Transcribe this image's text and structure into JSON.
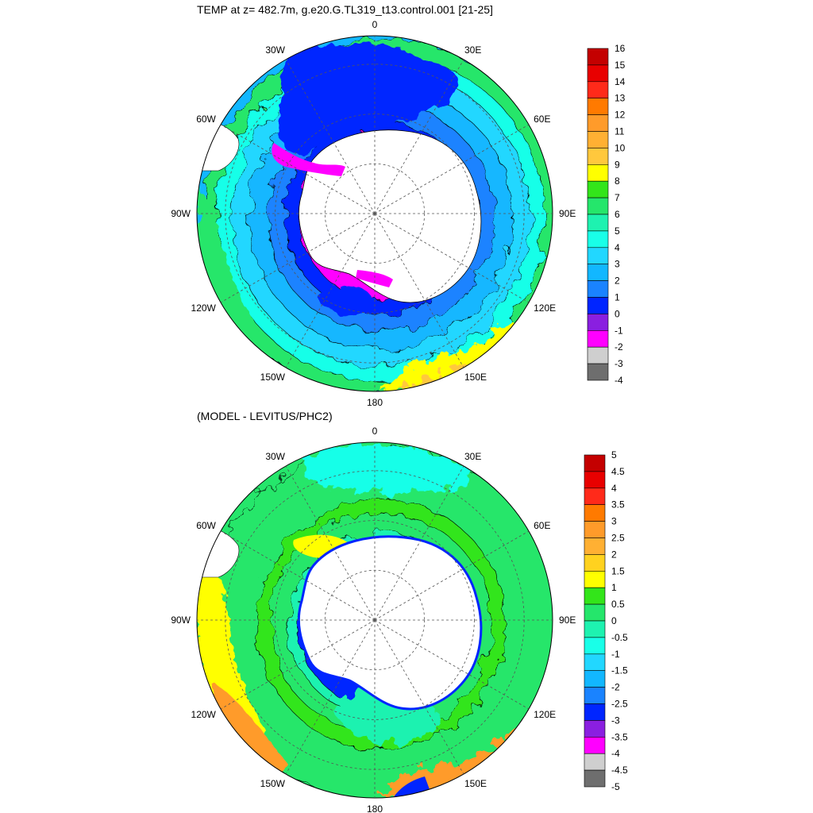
{
  "colors": {
    "land": "#ffffff",
    "coast": "#000000",
    "grid": "#555555"
  },
  "panels": [
    {
      "name": "temperature",
      "title": "TEMP at z= 482.7m, g.e20.G.TL319_t13.control.001 [21-25]",
      "lon_labels": [
        "0",
        "30E",
        "60E",
        "90E",
        "120E",
        "150E",
        "180",
        "150W",
        "120W",
        "90W",
        "60W",
        "30W"
      ],
      "colorbar": {
        "levels": [
          "16",
          "15",
          "14",
          "13",
          "12",
          "11",
          "10",
          "9",
          "8",
          "7",
          "6",
          "5",
          "4",
          "3",
          "2",
          "1",
          "0",
          "-1",
          "-2",
          "-3",
          "-4"
        ],
        "colors": [
          "#c40000",
          "#e80000",
          "#ff2a1a",
          "#ff7a00",
          "#ff9b2a",
          "#ffb033",
          "#ffc83d",
          "#ffff00",
          "#33e51a",
          "#25e66b",
          "#1ef2b0",
          "#19ffe8",
          "#22d7ff",
          "#12b7ff",
          "#1a83ff",
          "#0025ff",
          "#8a1fe0",
          "#ff00ff",
          "#cfcfcf",
          "#6e6e6e"
        ]
      },
      "field": {
        "description_levels": "contour bands by ocean zone",
        "rings": [
          {
            "radius_frac": 1.0,
            "color": "#25e66b"
          },
          {
            "radius_frac": 0.92,
            "color": "#19ffe8"
          },
          {
            "radius_frac": 0.84,
            "color": "#22d7ff"
          },
          {
            "radius_frac": 0.74,
            "color": "#12b7ff"
          },
          {
            "radius_frac": 0.64,
            "color": "#1a83ff"
          },
          {
            "radius_frac": 0.54,
            "color": "#0025ff"
          },
          {
            "radius_frac": 0.46,
            "color": "#ff00ff"
          }
        ]
      }
    },
    {
      "name": "difference",
      "title": "(MODEL - LEVITUS/PHC2)",
      "lon_labels": [
        "0",
        "30E",
        "60E",
        "90E",
        "120E",
        "150E",
        "180",
        "150W",
        "120W",
        "90W",
        "60W",
        "30W"
      ],
      "colorbar": {
        "levels": [
          "5",
          "4.5",
          "4",
          "3.5",
          "3",
          "2.5",
          "2",
          "1.5",
          "1",
          "0.5",
          "0",
          "-0.5",
          "-1",
          "-1.5",
          "-2",
          "-2.5",
          "-3",
          "-3.5",
          "-4",
          "-4.5",
          "-5"
        ],
        "colors": [
          "#c40000",
          "#e80000",
          "#ff2a1a",
          "#ff7a00",
          "#ff9b2a",
          "#ffb033",
          "#ffd21f",
          "#ffff00",
          "#33e51a",
          "#25e66b",
          "#1ef2b0",
          "#19ffe8",
          "#22d7ff",
          "#12b7ff",
          "#1a83ff",
          "#0025ff",
          "#8a1fe0",
          "#ff00ff",
          "#cfcfcf",
          "#6e6e6e"
        ]
      },
      "field": {
        "rings": [
          {
            "radius_frac": 1.0,
            "color": "#25e66b"
          },
          {
            "radius_frac": 0.7,
            "color": "#33e51a"
          },
          {
            "radius_frac": 0.62,
            "color": "#25e66b"
          },
          {
            "radius_frac": 0.52,
            "color": "#1ef2b0"
          },
          {
            "radius_frac": 0.47,
            "color": "#0025ff"
          }
        ]
      }
    }
  ]
}
